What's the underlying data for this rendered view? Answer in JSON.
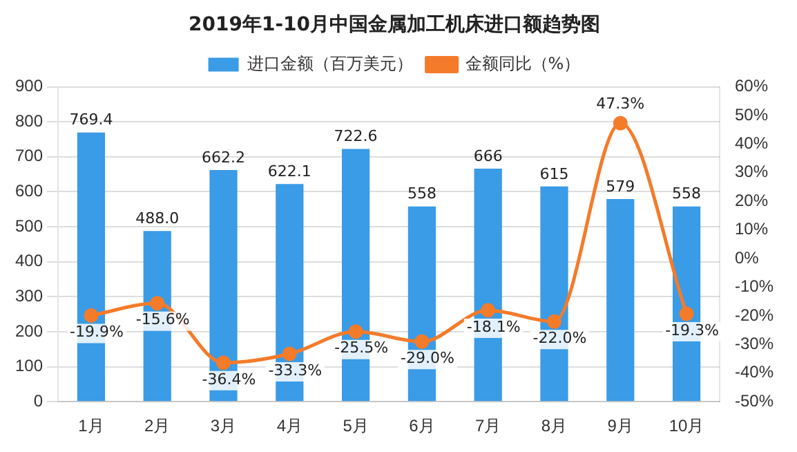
{
  "chart_data": {
    "type": "bar",
    "title": "2019年1-10月中国金属加工机床进口额趋势图",
    "categories": [
      "1月",
      "2月",
      "3月",
      "4月",
      "5月",
      "6月",
      "7月",
      "8月",
      "9月",
      "10月"
    ],
    "series": [
      {
        "name": "进口金额（百万美元）",
        "color": "#3a9be6",
        "values": [
          769.4,
          488.0,
          662.2,
          622.1,
          722.6,
          558,
          666,
          615,
          579,
          558
        ],
        "value_labels": [
          "769.4",
          "488.0",
          "662.2",
          "622.1",
          "722.6",
          "558",
          "666",
          "615",
          "579",
          "558"
        ]
      },
      {
        "name": "金额同比（%）",
        "type": "line",
        "axis": "y2",
        "color": "#f47b2a",
        "marker": "circle",
        "line_style": "solid",
        "values": [
          -19.9,
          -15.6,
          -36.4,
          -33.3,
          -25.5,
          -29.0,
          -18.1,
          -22.0,
          47.3,
          -19.3
        ],
        "value_labels": [
          "-19.9%",
          "-15.6%",
          "-36.4%",
          "-33.3%",
          "-25.5%",
          "-29.0%",
          "-18.1%",
          "-22.0%",
          "47.3%",
          "-19.3%"
        ]
      }
    ],
    "ylim": [
      0,
      900
    ],
    "yticks": [
      0,
      100,
      200,
      300,
      400,
      500,
      600,
      700,
      800,
      900
    ],
    "y2lim": [
      -50,
      60
    ],
    "y2ticks": [
      {
        "value": -50,
        "label": "-50%"
      },
      {
        "value": -40,
        "label": "-40%"
      },
      {
        "value": -30,
        "label": "-30%"
      },
      {
        "value": -20,
        "label": "-20%"
      },
      {
        "value": -10,
        "label": "-10%"
      },
      {
        "value": 0,
        "label": "0%"
      },
      {
        "value": 10,
        "label": "10%"
      },
      {
        "value": 20,
        "label": "20%"
      },
      {
        "value": 30,
        "label": "30%"
      },
      {
        "value": 40,
        "label": "40%"
      },
      {
        "value": 50,
        "label": "50%"
      },
      {
        "value": 60,
        "label": "60%"
      }
    ],
    "grid": "y",
    "legend": "top"
  }
}
